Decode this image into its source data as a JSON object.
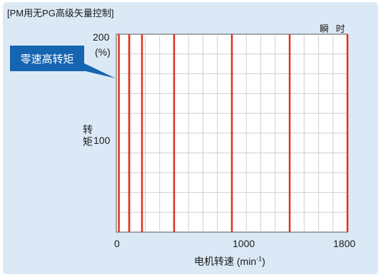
{
  "header": "[PM用无PG高级矢量控制]",
  "callout": "零速高转矩",
  "chart_data": {
    "type": "line",
    "subtitle": "瞬 时",
    "ylabel_line1": "转",
    "ylabel_line2": "矩",
    "yunit": "(%)",
    "xlabel_main": "电机转速 (min",
    "xlabel_sup": "-1",
    "xlabel_end": ")",
    "xlim": [
      0,
      1800
    ],
    "ylim": [
      0,
      200
    ],
    "xticks": [
      0,
      1000,
      1800
    ],
    "yticks": [
      100,
      200
    ],
    "xtick_labels": [
      "0",
      "1000",
      "1800"
    ],
    "ytick_label_top": "200",
    "ytick_label_mid": "100",
    "grid": true,
    "series_color": "#e0301e",
    "lines_x": [
      20,
      100,
      200,
      450,
      900,
      1350,
      1800
    ]
  }
}
